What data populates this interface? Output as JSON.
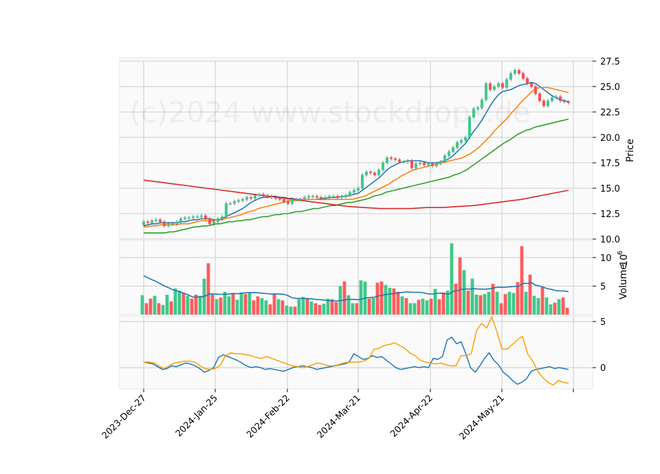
{
  "watermark": "(c)2024 www.stockdrops.de",
  "chart_data": {
    "type": "candlestick",
    "x_tick_labels": [
      "2023-Dec-27",
      "2024-Jan-25",
      "2024-Feb-22",
      "2024-Mar-21",
      "2024-Apr-22",
      "2024-May-21"
    ],
    "panels": [
      {
        "name": "price",
        "ylabel": "Price",
        "ylim": [
          10.0,
          27.5
        ],
        "yticks": [
          "10.0",
          "12.5",
          "15.0",
          "17.5",
          "20.0",
          "22.5",
          "25.0",
          "27.5"
        ],
        "close": [
          11.7,
          11.6,
          11.8,
          11.9,
          11.7,
          11.3,
          11.5,
          11.5,
          11.7,
          12.0,
          12.1,
          12.1,
          12.2,
          12.2,
          12.3,
          12.0,
          11.5,
          11.7,
          12.0,
          12.2,
          13.5,
          13.5,
          13.7,
          13.8,
          13.9,
          14.1,
          14.0,
          14.3,
          14.4,
          14.3,
          14.2,
          14.1,
          14.0,
          13.9,
          13.7,
          13.5,
          13.9,
          13.9,
          13.9,
          14.1,
          14.2,
          14.2,
          14.1,
          14.0,
          14.1,
          14.2,
          14.2,
          14.1,
          14.2,
          14.3,
          14.6,
          14.8,
          15.0,
          16.3,
          16.6,
          16.5,
          16.3,
          16.8,
          17.5,
          18.0,
          17.9,
          17.8,
          17.6,
          17.6,
          17.7,
          17.0,
          17.4,
          17.5,
          17.3,
          17.4,
          17.2,
          17.4,
          17.6,
          18.2,
          18.6,
          19.0,
          19.5,
          19.7,
          20.0,
          22.0,
          22.8,
          22.9,
          23.7,
          25.3,
          24.7,
          25.0,
          25.3,
          24.9,
          25.7,
          26.3,
          26.6,
          26.3,
          25.8,
          25.3,
          25.0,
          24.3,
          23.6,
          23.1,
          23.6,
          23.9,
          24.0,
          23.6,
          23.5,
          23.4
        ],
        "indicators": [
          {
            "name": "ma10",
            "color": "#1f77b4",
            "values": [
              11.3,
              11.4,
              11.5,
              11.5,
              11.6,
              11.6,
              11.6,
              11.6,
              11.6,
              11.7,
              11.7,
              11.8,
              11.9,
              11.9,
              12.0,
              12.0,
              12.0,
              11.9,
              11.9,
              12.0,
              12.2,
              12.4,
              12.6,
              12.8,
              13.0,
              13.3,
              13.6,
              13.8,
              14.0,
              14.1,
              14.1,
              14.2,
              14.2,
              14.1,
              14.1,
              14.0,
              14.0,
              13.9,
              13.9,
              13.9,
              13.9,
              13.9,
              13.9,
              14.0,
              14.0,
              14.1,
              14.1,
              14.1,
              14.2,
              14.2,
              14.3,
              14.4,
              14.5,
              14.8,
              15.1,
              15.4,
              15.7,
              16.0,
              16.4,
              16.8,
              17.1,
              17.3,
              17.5,
              17.6,
              17.7,
              17.7,
              17.7,
              17.7,
              17.6,
              17.5,
              17.5,
              17.5,
              17.6,
              17.7,
              17.9,
              18.2,
              18.6,
              19.0,
              19.4,
              20.0,
              20.6,
              21.1,
              21.7,
              22.4,
              23.1,
              23.7,
              24.2,
              24.5,
              24.6,
              24.7,
              24.9,
              25.1,
              25.2,
              25.3,
              25.4,
              25.3,
              25.0,
              24.7,
              24.4,
              24.1,
              23.9,
              23.7,
              23.6,
              23.5
            ]
          },
          {
            "name": "ma20",
            "color": "#ff7f0e",
            "values": [
              11.2,
              11.2,
              11.3,
              11.3,
              11.4,
              11.4,
              11.4,
              11.4,
              11.4,
              11.5,
              11.5,
              11.5,
              11.6,
              11.7,
              11.8,
              11.8,
              11.8,
              11.8,
              11.9,
              11.9,
              12.0,
              12.1,
              12.2,
              12.3,
              12.4,
              12.6,
              12.7,
              12.8,
              13.0,
              13.1,
              13.2,
              13.3,
              13.4,
              13.5,
              13.6,
              13.7,
              13.8,
              13.8,
              13.8,
              13.9,
              13.9,
              13.9,
              13.9,
              13.9,
              13.9,
              13.9,
              13.9,
              13.9,
              13.9,
              13.9,
              13.9,
              13.9,
              14.0,
              14.1,
              14.2,
              14.4,
              14.6,
              14.8,
              15.0,
              15.2,
              15.4,
              15.7,
              15.9,
              16.2,
              16.4,
              16.6,
              16.8,
              16.9,
              17.0,
              17.1,
              17.2,
              17.3,
              17.4,
              17.5,
              17.6,
              17.7,
              17.8,
              17.9,
              18.0,
              18.2,
              18.4,
              18.7,
              19.0,
              19.4,
              19.8,
              20.2,
              20.7,
              21.1,
              21.5,
              21.9,
              22.4,
              22.8,
              23.3,
              23.7,
              24.1,
              24.5,
              24.8,
              24.9,
              24.9,
              24.9,
              24.8,
              24.7,
              24.6,
              24.5,
              24.4
            ]
          },
          {
            "name": "ma50",
            "color": "#2ca02c",
            "values": [
              10.6,
              10.6,
              10.6,
              10.6,
              10.6,
              10.6,
              10.7,
              10.7,
              10.8,
              10.9,
              11.0,
              11.1,
              11.2,
              11.2,
              11.3,
              11.3,
              11.4,
              11.5,
              11.5,
              11.6,
              11.7,
              11.7,
              11.8,
              11.8,
              11.9,
              11.9,
              12.0,
              12.1,
              12.2,
              12.2,
              12.3,
              12.4,
              12.4,
              12.5,
              12.5,
              12.6,
              12.7,
              12.7,
              12.8,
              12.9,
              13.0,
              13.0,
              13.1,
              13.2,
              13.3,
              13.3,
              13.4,
              13.5,
              13.6,
              13.6,
              13.7,
              13.8,
              13.9,
              14.0,
              14.2,
              14.3,
              14.4,
              14.6,
              14.7,
              14.8,
              14.9,
              15.0,
              15.1,
              15.2,
              15.3,
              15.4,
              15.5,
              15.6,
              15.7,
              15.8,
              15.9,
              16.0,
              16.1,
              16.3,
              16.4,
              16.6,
              16.8,
              17.1,
              17.4,
              17.7,
              18.0,
              18.3,
              18.6,
              18.9,
              19.2,
              19.5,
              19.7,
              20.0,
              20.3,
              20.5,
              20.7,
              20.8,
              21.0,
              21.1,
              21.2,
              21.3,
              21.4,
              21.5,
              21.6,
              21.7,
              21.8
            ]
          },
          {
            "name": "ma200",
            "color": "#d62728",
            "values": [
              15.8,
              15.6,
              15.4,
              15.2,
              15.0,
              14.8,
              14.6,
              14.4,
              14.2,
              14.0,
              13.8,
              13.6,
              13.4,
              13.2,
              13.1,
              13.0,
              13.0,
              13.0,
              13.1,
              13.1,
              13.2,
              13.3,
              13.5,
              13.7,
              13.9,
              14.2,
              14.5,
              14.8
            ]
          }
        ]
      },
      {
        "name": "volume",
        "ylabel": "Volume",
        "y_multiplier": "10^6",
        "ylim": [
          0,
          13
        ],
        "yticks": [
          "5",
          "10"
        ],
        "values": [
          3.4,
          2.0,
          2.8,
          3.3,
          2.0,
          1.7,
          3.5,
          2.3,
          4.6,
          4.2,
          3.8,
          3.3,
          2.8,
          3.5,
          3.3,
          6.3,
          9.0,
          3.5,
          2.7,
          3.0,
          4.0,
          3.2,
          3.8,
          2.6,
          3.9,
          3.6,
          3.9,
          2.5,
          3.2,
          2.9,
          2.5,
          1.8,
          3.6,
          2.7,
          2.5,
          1.6,
          1.4,
          1.4,
          2.7,
          3.1,
          2.9,
          2.3,
          2.0,
          1.7,
          1.9,
          2.8,
          2.7,
          2.2,
          5.0,
          5.8,
          3.4,
          2.0,
          2.0,
          6.0,
          5.8,
          2.8,
          2.9,
          5.6,
          5.8,
          5.2,
          4.7,
          4.6,
          4.0,
          3.2,
          2.9,
          2.0,
          2.0,
          2.6,
          2.8,
          2.5,
          2.8,
          4.5,
          2.7,
          3.9,
          4.2,
          12.5,
          5.4,
          10.0,
          7.8,
          4.2,
          6.3,
          3.5,
          3.4,
          3.6,
          4.0,
          5.4,
          4.0,
          2.0,
          3.6,
          4.0,
          3.8,
          5.7,
          12.0,
          4.0,
          7.0,
          3.3,
          2.9,
          4.8,
          3.0,
          1.8,
          2.1,
          2.7,
          3.0,
          1.2
        ],
        "moving_average_color": "#1f77b4"
      },
      {
        "name": "oscillator",
        "yticks": [
          "0",
          "5"
        ],
        "ylim": [
          -2.3,
          5.6
        ],
        "series": [
          {
            "color": "#1f77b4",
            "values": [
              0.6,
              0.5,
              0.4,
              0.1,
              -0.2,
              -0.1,
              0.2,
              0.1,
              0.3,
              0.5,
              0.4,
              0.2,
              -0.1,
              -0.5,
              -0.3,
              0.0,
              1.1,
              1.4,
              1.2,
              1.0,
              0.8,
              0.5,
              0.2,
              0.0,
              0.1,
              0.0,
              -0.2,
              -0.1,
              -0.2,
              -0.3,
              -0.4,
              -0.2,
              0.0,
              0.1,
              0.2,
              0.1,
              0.0,
              -0.2,
              -0.1,
              0.0,
              0.1,
              0.2,
              0.3,
              0.4,
              0.6,
              1.5,
              1.2,
              0.9,
              1.0,
              1.3,
              1.1,
              1.2,
              0.8,
              0.4,
              0.0,
              -0.2,
              -0.1,
              0.0,
              0.1,
              0.0,
              0.1,
              0.0,
              1.0,
              0.9,
              1.2,
              3.0,
              3.3,
              2.6,
              2.8,
              1.5,
              0.0,
              -0.5,
              0.2,
              1.0,
              1.6,
              0.8,
              0.3,
              -0.5,
              -0.9,
              -1.4,
              -1.8,
              -1.6,
              -1.2,
              -0.4,
              -0.2,
              -0.1,
              0.0,
              0.1,
              -0.1,
              0.0,
              -0.1,
              -0.2
            ]
          },
          {
            "color": "#ff9e00",
            "values": [
              0.6,
              0.6,
              0.5,
              0.2,
              -0.1,
              0.2,
              0.5,
              0.6,
              0.7,
              0.7,
              0.6,
              0.2,
              -0.1,
              -0.2,
              -0.1,
              0.3,
              1.3,
              1.6,
              1.5,
              1.5,
              1.4,
              1.3,
              1.1,
              1.0,
              1.2,
              1.0,
              0.8,
              0.6,
              0.4,
              0.2,
              0.1,
              0.0,
              0.1,
              0.3,
              0.5,
              0.4,
              0.2,
              0.2,
              0.3,
              0.5,
              0.6,
              0.6,
              0.6,
              0.7,
              1.0,
              2.0,
              2.1,
              2.4,
              2.5,
              2.7,
              2.4,
              2.1,
              1.6,
              1.3,
              0.8,
              0.6,
              0.5,
              0.4,
              0.5,
              0.3,
              0.2,
              0.2,
              1.3,
              1.3,
              1.5,
              4.0,
              4.8,
              4.3,
              5.5,
              3.9,
              2.0,
              2.0,
              2.5,
              3.0,
              3.4,
              1.5,
              0.7,
              -0.4,
              -1.1,
              -1.6,
              -1.9,
              -1.4,
              -1.6,
              -1.7
            ]
          }
        ]
      }
    ]
  }
}
